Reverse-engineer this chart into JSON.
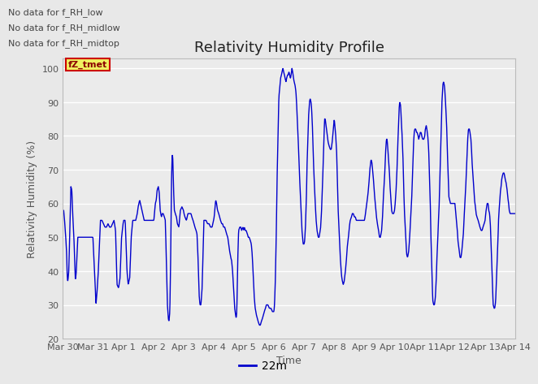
{
  "title": "Relativity Humidity Profile",
  "xlabel": "Time",
  "ylabel": "Relativity Humidity (%)",
  "ylim": [
    20,
    103
  ],
  "yticks": [
    20,
    30,
    40,
    50,
    60,
    70,
    80,
    90,
    100
  ],
  "line_color": "#0000cc",
  "line_width": 1.0,
  "bg_color": "#e8e8e8",
  "plot_bg_color": "#ebebeb",
  "grid_color": "#ffffff",
  "legend_label": "22m",
  "annotations": [
    "No data for f_RH_low",
    "No data for f_RH_midlow",
    "No data for f_RH_midtop"
  ],
  "tz_label": "fZ_tmet",
  "x_tick_labels": [
    "Mar 30",
    "Mar 31",
    "Apr 1",
    "Apr 2",
    "Apr 3",
    "Apr 4",
    "Apr 5",
    "Apr 6",
    "Apr 7",
    "Apr 8",
    "Apr 9",
    "Apr 10",
    "Apr 11",
    "Apr 12",
    "Apr 13",
    "Apr 14"
  ],
  "x_tick_positions": [
    0,
    1,
    2,
    3,
    4,
    5,
    6,
    7,
    8,
    9,
    10,
    11,
    12,
    13,
    14,
    15
  ],
  "title_fontsize": 13,
  "axis_label_fontsize": 9,
  "tick_fontsize": 8,
  "ann_fontsize": 8
}
